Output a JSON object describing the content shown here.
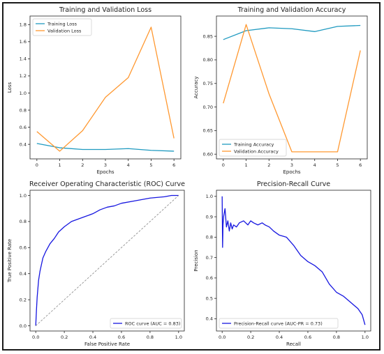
{
  "chart_data": [
    {
      "type": "line",
      "title": "Training and Validation Loss",
      "xlabel": "Epochs",
      "ylabel": "Loss",
      "x": [
        0,
        1,
        2,
        3,
        4,
        5,
        6
      ],
      "xlim": [
        -0.3,
        6.3
      ],
      "ylim": [
        0.23,
        1.9
      ],
      "xticks": [
        0,
        1,
        2,
        3,
        4,
        5,
        6
      ],
      "yticks": [
        0.4,
        0.6,
        0.8,
        1.0,
        1.2,
        1.4,
        1.6,
        1.8
      ],
      "legend_position": "top-left",
      "series": [
        {
          "name": "Training Loss",
          "color": "#1f9ac0",
          "values": [
            0.41,
            0.36,
            0.34,
            0.34,
            0.35,
            0.33,
            0.32
          ]
        },
        {
          "name": "Validation Loss",
          "color": "#ff9830",
          "values": [
            0.55,
            0.32,
            0.56,
            0.95,
            1.18,
            1.77,
            0.47
          ]
        }
      ]
    },
    {
      "type": "line",
      "title": "Training and Validation Accuracy",
      "xlabel": "Epochs",
      "ylabel": "Accuracy",
      "x": [
        0,
        1,
        2,
        3,
        4,
        5,
        6
      ],
      "xlim": [
        -0.3,
        6.3
      ],
      "ylim": [
        0.59,
        0.893
      ],
      "xticks": [
        0,
        1,
        2,
        3,
        4,
        5,
        6
      ],
      "yticks": [
        0.6,
        0.65,
        0.7,
        0.75,
        0.8,
        0.85
      ],
      "legend_position": "bottom-left",
      "series": [
        {
          "name": "Training Accuracy",
          "color": "#1f9ac0",
          "values": [
            0.843,
            0.862,
            0.868,
            0.866,
            0.86,
            0.871,
            0.873
          ]
        },
        {
          "name": "Validation Accuracy",
          "color": "#ff9830",
          "values": [
            0.708,
            0.875,
            0.728,
            0.605,
            0.605,
            0.605,
            0.82
          ]
        }
      ]
    },
    {
      "type": "line",
      "title": "Receiver Operating Characteristic (ROC) Curve",
      "xlabel": "False Positive Rate",
      "ylabel": "True Positive Rate",
      "xlim": [
        -0.04,
        1.04
      ],
      "ylim": [
        -0.04,
        1.04
      ],
      "xticks": [
        0.0,
        0.2,
        0.4,
        0.6,
        0.8,
        1.0
      ],
      "yticks": [
        0.0,
        0.2,
        0.4,
        0.6,
        0.8,
        1.0
      ],
      "legend_position": "bottom-right",
      "series": [
        {
          "name": "ROC curve (AUC = 0.83)",
          "color": "#1616e0",
          "x": [
            0.0,
            0.005,
            0.01,
            0.02,
            0.03,
            0.05,
            0.07,
            0.1,
            0.13,
            0.16,
            0.2,
            0.25,
            0.3,
            0.35,
            0.4,
            0.45,
            0.5,
            0.55,
            0.6,
            0.7,
            0.8,
            0.9,
            0.95,
            1.0
          ],
          "y": [
            0.0,
            0.12,
            0.22,
            0.35,
            0.42,
            0.52,
            0.57,
            0.63,
            0.67,
            0.72,
            0.76,
            0.8,
            0.82,
            0.84,
            0.86,
            0.89,
            0.91,
            0.92,
            0.94,
            0.96,
            0.98,
            0.99,
            1.0,
            1.0
          ]
        },
        {
          "name": "",
          "color": "#888888",
          "dashed": true,
          "x": [
            0.0,
            1.0
          ],
          "y": [
            0.0,
            1.0
          ]
        }
      ]
    },
    {
      "type": "line",
      "title": "Precision-Recall Curve",
      "xlabel": "Recall",
      "ylabel": "Precision",
      "xlim": [
        -0.04,
        1.04
      ],
      "ylim": [
        0.34,
        1.03
      ],
      "xticks": [
        0.0,
        0.2,
        0.4,
        0.6,
        0.8,
        1.0
      ],
      "yticks": [
        0.4,
        0.5,
        0.6,
        0.7,
        0.8,
        0.9,
        1.0
      ],
      "legend_position": "bottom-left",
      "series": [
        {
          "name": "Precision-Recall curve (AUC-PR = 0.73)",
          "color": "#1616e0",
          "x": [
            0.0,
            0.003,
            0.006,
            0.01,
            0.02,
            0.03,
            0.04,
            0.05,
            0.06,
            0.07,
            0.08,
            0.1,
            0.12,
            0.15,
            0.18,
            0.2,
            0.22,
            0.25,
            0.28,
            0.3,
            0.33,
            0.36,
            0.4,
            0.45,
            0.5,
            0.55,
            0.6,
            0.65,
            0.7,
            0.75,
            0.8,
            0.85,
            0.9,
            0.95,
            0.98,
            1.0
          ],
          "y": [
            1.0,
            0.75,
            0.86,
            0.9,
            0.94,
            0.85,
            0.88,
            0.83,
            0.87,
            0.84,
            0.86,
            0.85,
            0.87,
            0.88,
            0.86,
            0.88,
            0.87,
            0.86,
            0.87,
            0.86,
            0.85,
            0.83,
            0.81,
            0.8,
            0.76,
            0.71,
            0.68,
            0.66,
            0.63,
            0.57,
            0.53,
            0.51,
            0.48,
            0.45,
            0.42,
            0.37
          ]
        }
      ]
    }
  ]
}
